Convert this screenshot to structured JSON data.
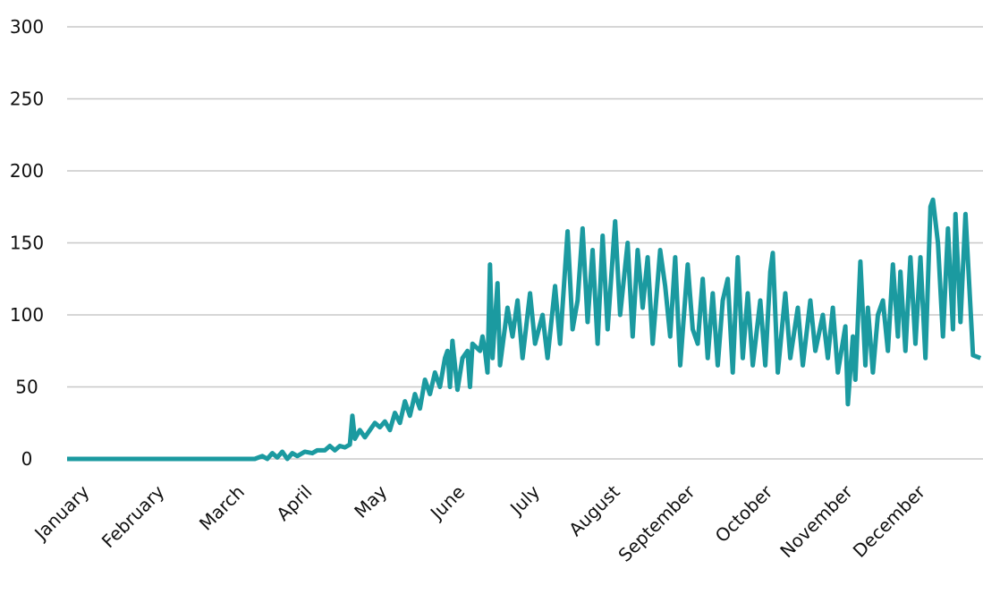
{
  "chart_data": {
    "type": "line",
    "x": [
      0,
      20,
      40,
      60,
      75,
      78,
      80,
      82,
      84,
      86,
      88,
      90,
      92,
      95,
      98,
      100,
      103,
      105,
      107,
      109,
      111,
      113,
      114,
      115,
      117,
      119,
      121,
      123,
      125,
      127,
      129,
      131,
      133,
      135,
      137,
      139,
      141,
      143,
      145,
      147,
      149,
      151,
      152,
      153,
      154,
      156,
      158,
      160,
      161,
      162,
      165,
      166,
      167,
      168,
      169,
      170,
      172,
      173,
      176,
      178,
      180,
      182,
      185,
      187,
      190,
      192,
      195,
      197,
      200,
      202,
      204,
      206,
      208,
      210,
      212,
      214,
      216,
      219,
      221,
      224,
      226,
      228,
      230,
      232,
      234,
      237,
      239,
      241,
      243,
      245,
      248,
      250,
      252,
      254,
      256,
      258,
      260,
      262,
      264,
      266,
      268,
      270,
      272,
      274,
      277,
      279,
      281,
      282,
      284,
      287,
      289,
      292,
      294,
      297,
      299,
      302,
      304,
      306,
      308,
      311,
      312,
      314,
      315,
      317,
      319,
      320,
      322,
      324,
      326,
      328,
      330,
      332,
      333,
      335,
      337,
      339,
      341,
      343,
      345,
      346,
      348,
      350,
      352,
      354,
      355,
      357,
      359,
      362,
      365
    ],
    "series": [
      {
        "color": "#1b9aa0",
        "values": [
          0,
          0,
          0,
          0,
          0,
          2,
          0,
          4,
          1,
          5,
          0,
          4,
          2,
          5,
          4,
          6,
          6,
          9,
          6,
          9,
          8,
          10,
          30,
          14,
          20,
          15,
          20,
          25,
          22,
          26,
          20,
          32,
          25,
          40,
          30,
          45,
          35,
          55,
          45,
          60,
          50,
          70,
          75,
          50,
          82,
          48,
          70,
          75,
          50,
          80,
          75,
          85,
          75,
          60,
          135,
          70,
          122,
          65,
          105,
          85,
          110,
          70,
          115,
          80,
          100,
          70,
          120,
          80,
          158,
          90,
          110,
          160,
          95,
          145,
          80,
          155,
          90,
          165,
          100,
          150,
          85,
          145,
          105,
          140,
          80,
          145,
          120,
          85,
          140,
          65,
          135,
          90,
          80,
          125,
          70,
          115,
          65,
          110,
          125,
          60,
          140,
          70,
          115,
          65,
          110,
          65,
          130,
          143,
          60,
          115,
          70,
          105,
          65,
          110,
          75,
          100,
          70,
          105,
          60,
          92,
          38,
          85,
          55,
          137,
          65,
          105,
          60,
          100,
          110,
          75,
          135,
          85,
          130,
          75,
          140,
          80,
          140,
          70,
          175,
          180,
          150,
          85,
          160,
          90,
          170,
          95,
          170,
          72,
          70
        ]
      }
    ],
    "xlim": [
      0,
      366
    ],
    "xticks": [
      {
        "value": 5,
        "label": "January"
      },
      {
        "value": 35,
        "label": "February"
      },
      {
        "value": 67,
        "label": "March"
      },
      {
        "value": 94,
        "label": "April"
      },
      {
        "value": 124,
        "label": "May"
      },
      {
        "value": 155,
        "label": "June"
      },
      {
        "value": 185,
        "label": "July"
      },
      {
        "value": 217,
        "label": "August"
      },
      {
        "value": 247,
        "label": "September"
      },
      {
        "value": 278,
        "label": "October"
      },
      {
        "value": 310,
        "label": "November"
      },
      {
        "value": 339,
        "label": "December"
      }
    ],
    "ylim": [
      0,
      300
    ],
    "yticks": [
      0,
      50,
      100,
      150,
      200,
      250,
      300
    ],
    "grid": true
  }
}
